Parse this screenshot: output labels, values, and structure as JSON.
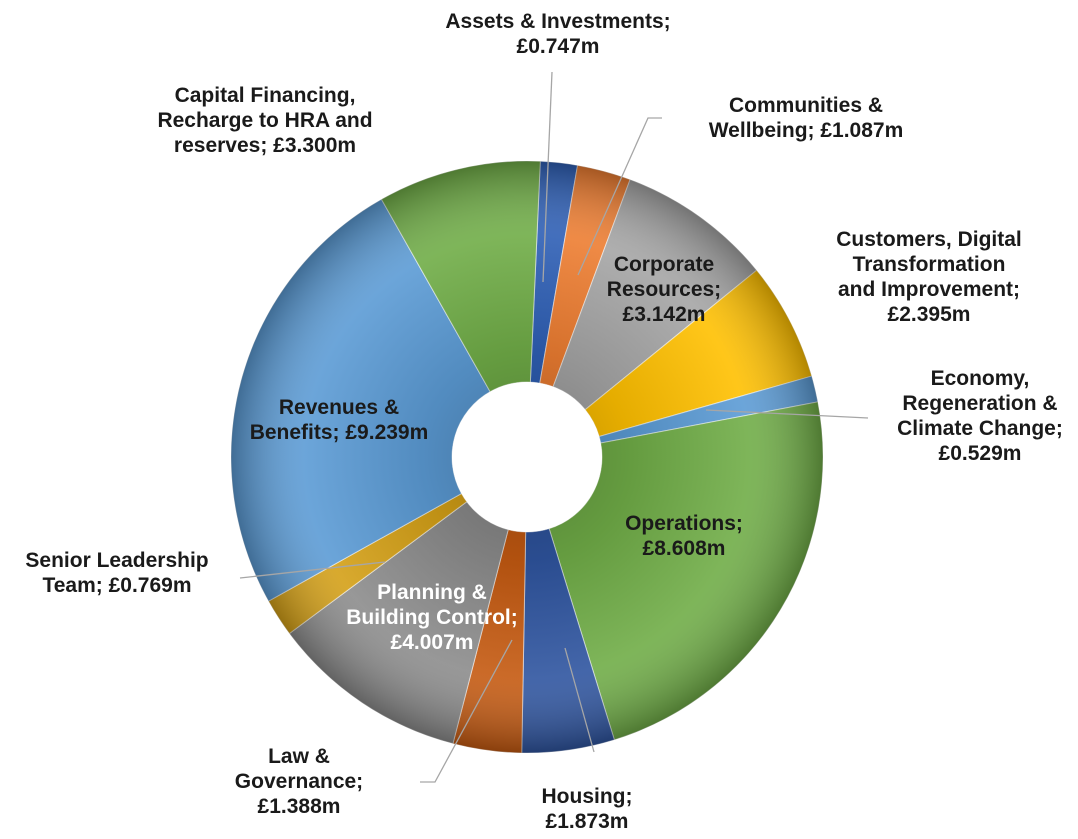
{
  "chart_data": {
    "type": "pie",
    "variant": "doughnut",
    "title": "",
    "unit": "£m",
    "slices": [
      {
        "name": "Assets & Investments",
        "value": 0.747,
        "label_lines": [
          "Assets & Investments;",
          "£0.747m"
        ],
        "color": "#2e5fb5"
      },
      {
        "name": "Communities & Wellbeing",
        "value": 1.087,
        "label_lines": [
          "Communities &",
          "Wellbeing; £1.087m"
        ],
        "color": "#ed7d31"
      },
      {
        "name": "Corporate Resources",
        "value": 3.142,
        "label_lines": [
          "Corporate",
          "Resources;",
          "£3.142m"
        ],
        "color": "#a5a5a5"
      },
      {
        "name": "Customers, Digital Transformation and Improvement",
        "value": 2.395,
        "label_lines": [
          "Customers, Digital",
          "Transformation",
          "and Improvement;",
          "£2.395m"
        ],
        "color": "#ffc000"
      },
      {
        "name": "Economy, Regeneration & Climate Change",
        "value": 0.529,
        "label_lines": [
          "Economy,",
          "Regeneration &",
          "Climate Change;",
          "£0.529m"
        ],
        "color": "#5b9bd5"
      },
      {
        "name": "Operations",
        "value": 8.608,
        "label_lines": [
          "Operations;",
          "£8.608m"
        ],
        "color": "#70ad47"
      },
      {
        "name": "Housing",
        "value": 1.873,
        "label_lines": [
          "Housing;",
          "£1.873m"
        ],
        "color": "#2f55a0"
      },
      {
        "name": "Law & Governance",
        "value": 1.388,
        "label_lines": [
          "Law &",
          "Governance;",
          "£1.388m"
        ],
        "color": "#c55a11"
      },
      {
        "name": "Planning & Building Control",
        "value": 4.007,
        "label_lines": [
          "Planning &",
          "Building Control;",
          "£4.007m"
        ],
        "color": "#8c8c8c"
      },
      {
        "name": "Senior Leadership Team",
        "value": 0.769,
        "label_lines": [
          "Senior Leadership",
          "Team; £0.769m"
        ],
        "color": "#d4a017"
      },
      {
        "name": "Revenues & Benefits",
        "value": 9.239,
        "label_lines": [
          "Revenues &",
          "Benefits; £9.239m"
        ],
        "color": "#5b9bd5"
      },
      {
        "name": "Capital Financing, Recharge to HRA and reserves",
        "value": 3.3,
        "label_lines": [
          "Capital Financing,",
          "Recharge to HRA and",
          "reserves; £3.300m"
        ],
        "color": "#70ad47"
      }
    ],
    "legend": "none"
  }
}
